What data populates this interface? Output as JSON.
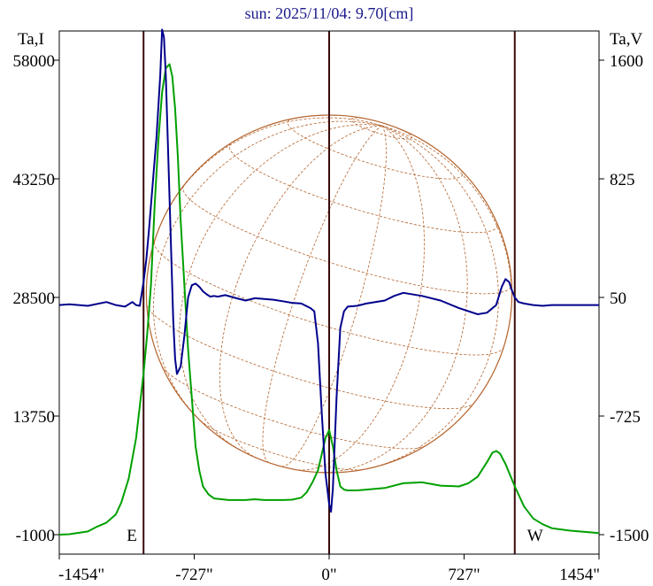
{
  "chart_data": {
    "type": "line",
    "title": "sun: 2025/11/04: 9.70[cm]",
    "left_axis": {
      "label": "Ta,I",
      "range": [
        -1000,
        58000
      ],
      "ticks": [
        "58000",
        "43250",
        "28500",
        "13750",
        "-1000"
      ]
    },
    "right_axis": {
      "label": "Ta,V",
      "range": [
        -1500,
        1600
      ],
      "ticks": [
        "1600",
        "825",
        "50",
        "-725",
        "-1500"
      ]
    },
    "x_axis": {
      "range": [
        -1454,
        1454
      ],
      "ticks": [
        "-1454\"",
        "-727\"",
        "0\"",
        "727\"",
        "1454\""
      ]
    },
    "markers": [
      {
        "label": "E",
        "x": -1000
      },
      {
        "label": "",
        "x": 0
      },
      {
        "label": "W",
        "x": 1000
      }
    ],
    "disk": {
      "radius_arcsec": 985,
      "center_arcsec": [
        0,
        0
      ]
    },
    "series": [
      {
        "axis": "left",
        "color": "#00a000",
        "x": [
          -1500,
          -1400,
          -1300,
          -1250,
          -1200,
          -1150,
          -1120,
          -1080,
          -1040,
          -1020,
          -1000,
          -980,
          -960,
          -940,
          -920,
          -900,
          -880,
          -860,
          -845,
          -830,
          -815,
          -800,
          -780,
          -760,
          -740,
          -720,
          -700,
          -680,
          -650,
          -620,
          -580,
          -540,
          -500,
          -450,
          -400,
          -350,
          -300,
          -250,
          -200,
          -150,
          -120,
          -90,
          -60,
          -40,
          -20,
          0,
          20,
          40,
          60,
          80,
          100,
          150,
          200,
          300,
          400,
          500,
          600,
          700,
          750,
          800,
          850,
          880,
          900,
          920,
          950,
          1000,
          1050,
          1100,
          1150,
          1200,
          1300,
          1400,
          1500
        ],
        "y": [
          -1000,
          -950,
          -600,
          0,
          500,
          1500,
          3000,
          6000,
          11000,
          15000,
          19000,
          24000,
          30000,
          40000,
          48000,
          54000,
          57000,
          57500,
          56000,
          52000,
          46000,
          38000,
          30000,
          22000,
          16000,
          10000,
          7000,
          5000,
          4000,
          3500,
          3400,
          3300,
          3300,
          3300,
          3400,
          3300,
          3300,
          3300,
          3350,
          3600,
          4300,
          5500,
          7000,
          9000,
          11000,
          12000,
          10000,
          7000,
          5000,
          4600,
          4500,
          4500,
          4600,
          4800,
          5400,
          5500,
          5100,
          5000,
          5400,
          6200,
          8000,
          9200,
          9400,
          9100,
          7800,
          5000,
          2500,
          1000,
          300,
          -200,
          -500,
          -700,
          -800
        ]
      },
      {
        "axis": "right",
        "color": "#00008c",
        "x": [
          -1500,
          -1400,
          -1300,
          -1200,
          -1150,
          -1100,
          -1060,
          -1040,
          -1020,
          -1000,
          -985,
          -970,
          -950,
          -930,
          -920,
          -910,
          -900,
          -890,
          -880,
          -870,
          -860,
          -850,
          -840,
          -830,
          -820,
          -800,
          -780,
          -760,
          -740,
          -720,
          -700,
          -680,
          -660,
          -640,
          -620,
          -600,
          -560,
          -500,
          -450,
          -400,
          -350,
          -300,
          -250,
          -200,
          -150,
          -100,
          -80,
          -60,
          -40,
          -20,
          0,
          10,
          20,
          40,
          60,
          80,
          100,
          150,
          200,
          300,
          350,
          400,
          500,
          600,
          700,
          800,
          850,
          900,
          930,
          950,
          970,
          980,
          990,
          1000,
          1020,
          1050,
          1100,
          1150,
          1200,
          1300,
          1400,
          1500
        ],
        "y": [
          0,
          5,
          -5,
          20,
          0,
          -10,
          20,
          0,
          -5,
          150,
          300,
          500,
          800,
          1100,
          1300,
          1500,
          1800,
          1750,
          1500,
          1100,
          700,
          300,
          -100,
          -350,
          -450,
          -400,
          -200,
          50,
          130,
          140,
          120,
          90,
          70,
          55,
          60,
          55,
          65,
          45,
          30,
          45,
          40,
          35,
          25,
          15,
          10,
          -20,
          -40,
          -250,
          -700,
          -1100,
          -1300,
          -1350,
          -1200,
          -600,
          -150,
          -40,
          -10,
          -5,
          10,
          30,
          60,
          80,
          60,
          30,
          -20,
          -60,
          -50,
          0,
          120,
          170,
          150,
          110,
          80,
          50,
          20,
          10,
          0,
          -5,
          0,
          0,
          0,
          0
        ]
      }
    ]
  }
}
